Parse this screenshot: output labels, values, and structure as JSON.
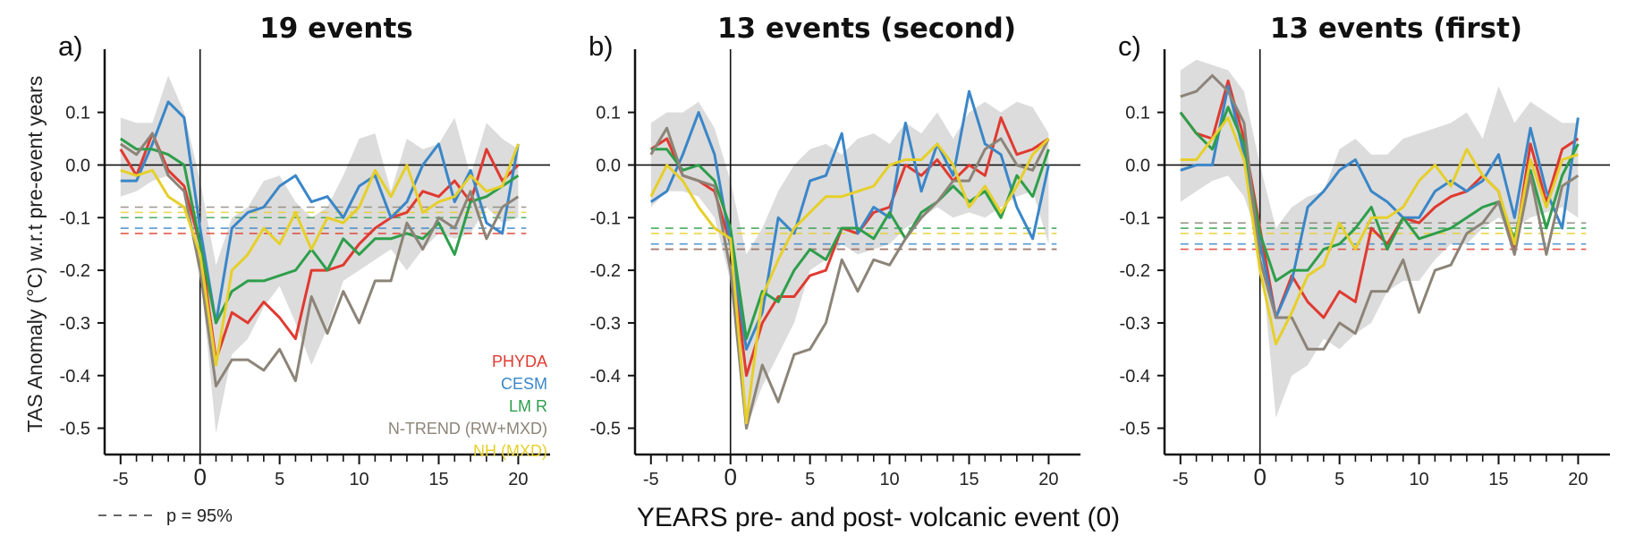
{
  "figure": {
    "ylabel": "TAS Anomaly (°C) w.r.t pre-event years",
    "xlabel": "YEARS pre- and post- volcanic event (0)",
    "significance_note": "p = 95%",
    "legend": [
      {
        "name": "PHYDA",
        "color": "#e03a30"
      },
      {
        "name": "CESM",
        "color": "#3a86c8"
      },
      {
        "name": "LM R",
        "color": "#2e9e4a"
      },
      {
        "name": "N-TREND (RW+MXD)",
        "color": "#8c8478"
      },
      {
        "name": "NH (MXD)",
        "color": "#e6cf2a"
      }
    ]
  },
  "chart_data": [
    {
      "type": "line",
      "panel_label": "a)",
      "title": "19 events",
      "xlim": [
        -6,
        22
      ],
      "ylim": [
        -0.55,
        0.22
      ],
      "xticks": [
        -5,
        0,
        5,
        10,
        15,
        20
      ],
      "yticks": [
        0.1,
        0.0,
        -0.1,
        -0.2,
        -0.3,
        -0.4,
        -0.5
      ],
      "ytick_labels": [
        "0.1",
        "0.0",
        "-0.1",
        "-0.2",
        "-0.3",
        "-0.4",
        "-0.5"
      ],
      "x": [
        -5,
        -4,
        -3,
        -2,
        -1,
        0,
        1,
        2,
        3,
        4,
        5,
        6,
        7,
        8,
        9,
        10,
        11,
        12,
        13,
        14,
        15,
        16,
        17,
        18,
        19,
        20
      ],
      "band_upper": [
        0.09,
        0.08,
        0.08,
        0.17,
        0.1,
        -0.03,
        -0.19,
        -0.1,
        -0.08,
        -0.03,
        -0.02,
        -0.07,
        -0.1,
        -0.08,
        -0.02,
        0.05,
        0.06,
        -0.05,
        0.05,
        0.03,
        0.04,
        0.09,
        -0.02,
        0.08,
        0.05,
        0.03
      ],
      "band_lower": [
        -0.06,
        -0.05,
        -0.03,
        -0.02,
        -0.04,
        -0.2,
        -0.51,
        -0.36,
        -0.33,
        -0.27,
        -0.23,
        -0.3,
        -0.38,
        -0.31,
        -0.22,
        -0.2,
        -0.18,
        -0.16,
        -0.2,
        -0.16,
        -0.13,
        -0.14,
        -0.13,
        -0.08,
        -0.11,
        -0.1
      ],
      "series": [
        {
          "name": "PHYDA",
          "color": "#e03a30",
          "values": [
            0.03,
            -0.02,
            0.06,
            -0.01,
            -0.04,
            -0.15,
            -0.37,
            -0.28,
            -0.3,
            -0.26,
            -0.29,
            -0.33,
            -0.2,
            -0.2,
            -0.19,
            -0.15,
            -0.12,
            -0.1,
            -0.09,
            -0.05,
            -0.06,
            -0.03,
            -0.07,
            0.03,
            -0.03,
            0.0
          ],
          "threshold": -0.13
        },
        {
          "name": "CESM",
          "color": "#3a86c8",
          "values": [
            -0.03,
            -0.03,
            0.04,
            0.12,
            0.09,
            -0.12,
            -0.3,
            -0.12,
            -0.09,
            -0.08,
            -0.04,
            -0.02,
            -0.07,
            -0.06,
            -0.1,
            -0.04,
            -0.02,
            -0.1,
            -0.07,
            0.0,
            0.04,
            -0.07,
            -0.01,
            -0.11,
            -0.13,
            0.04
          ],
          "threshold": -0.12
        },
        {
          "name": "LM R",
          "color": "#2e9e4a",
          "values": [
            0.05,
            0.03,
            0.03,
            0.02,
            0.0,
            -0.15,
            -0.3,
            -0.24,
            -0.22,
            -0.22,
            -0.21,
            -0.2,
            -0.16,
            -0.2,
            -0.14,
            -0.17,
            -0.14,
            -0.14,
            -0.13,
            -0.14,
            -0.11,
            -0.17,
            -0.07,
            -0.06,
            -0.04,
            -0.02
          ],
          "threshold": -0.1
        },
        {
          "name": "N-TREND (RW+MXD)",
          "color": "#8c8478",
          "values": [
            0.04,
            0.02,
            0.06,
            -0.02,
            -0.05,
            -0.2,
            -0.42,
            -0.37,
            -0.37,
            -0.39,
            -0.35,
            -0.41,
            -0.25,
            -0.32,
            -0.24,
            -0.3,
            -0.22,
            -0.22,
            -0.11,
            -0.16,
            -0.1,
            -0.12,
            -0.05,
            -0.14,
            -0.08,
            -0.06
          ],
          "threshold": -0.08
        },
        {
          "name": "NH (MXD)",
          "color": "#e6cf2a",
          "values": [
            -0.01,
            -0.02,
            -0.01,
            -0.06,
            -0.08,
            -0.17,
            -0.38,
            -0.2,
            -0.17,
            -0.12,
            -0.15,
            -0.09,
            -0.16,
            -0.1,
            -0.11,
            -0.08,
            -0.01,
            -0.06,
            0.0,
            -0.09,
            -0.07,
            -0.06,
            -0.02,
            -0.05,
            -0.04,
            0.04
          ],
          "threshold": -0.09
        }
      ]
    },
    {
      "type": "line",
      "panel_label": "b)",
      "title": "13 events (second)",
      "xlim": [
        -6,
        22
      ],
      "ylim": [
        -0.55,
        0.22
      ],
      "xticks": [
        -5,
        0,
        5,
        10,
        15,
        20
      ],
      "yticks": [
        0.1,
        0.0,
        -0.1,
        -0.2,
        -0.3,
        -0.4,
        -0.5
      ],
      "ytick_labels": [
        "0.1",
        "0.0",
        "-0.1",
        "-0.2",
        "-0.3",
        "-0.4",
        "-0.5"
      ],
      "x": [
        -5,
        -4,
        -3,
        -2,
        -1,
        0,
        1,
        2,
        3,
        4,
        5,
        6,
        7,
        8,
        9,
        10,
        11,
        12,
        13,
        14,
        15,
        16,
        17,
        18,
        19,
        20
      ],
      "band_upper": [
        0.08,
        0.1,
        0.1,
        0.12,
        0.07,
        -0.03,
        -0.17,
        -0.12,
        -0.05,
        0.0,
        0.03,
        0.04,
        0.02,
        0.05,
        0.06,
        0.04,
        0.08,
        0.06,
        0.1,
        0.05,
        0.1,
        0.12,
        0.1,
        0.12,
        0.11,
        0.06
      ],
      "band_lower": [
        -0.08,
        -0.05,
        -0.05,
        -0.06,
        -0.1,
        -0.22,
        -0.5,
        -0.42,
        -0.36,
        -0.3,
        -0.2,
        -0.18,
        -0.15,
        -0.17,
        -0.16,
        -0.15,
        -0.12,
        -0.1,
        -0.08,
        -0.1,
        -0.09,
        -0.1,
        -0.08,
        -0.06,
        -0.05,
        -0.15
      ],
      "series": [
        {
          "name": "PHYDA",
          "color": "#e03a30",
          "values": [
            0.03,
            0.05,
            -0.02,
            -0.03,
            -0.05,
            -0.15,
            -0.4,
            -0.3,
            -0.25,
            -0.25,
            -0.21,
            -0.2,
            -0.12,
            -0.13,
            -0.09,
            -0.08,
            0.0,
            -0.02,
            0.01,
            -0.03,
            0.0,
            -0.02,
            0.09,
            0.02,
            0.03,
            0.05
          ],
          "threshold": -0.16
        },
        {
          "name": "CESM",
          "color": "#3a86c8",
          "values": [
            -0.07,
            -0.05,
            0.02,
            0.1,
            0.02,
            -0.15,
            -0.35,
            -0.28,
            -0.1,
            -0.13,
            -0.03,
            -0.02,
            0.06,
            -0.13,
            -0.08,
            -0.1,
            0.08,
            -0.05,
            0.04,
            -0.02,
            0.14,
            0.04,
            0.02,
            -0.08,
            -0.14,
            0.0
          ],
          "threshold": -0.15
        },
        {
          "name": "LM R",
          "color": "#2e9e4a",
          "values": [
            0.03,
            0.03,
            -0.01,
            0.0,
            -0.03,
            -0.12,
            -0.33,
            -0.24,
            -0.26,
            -0.2,
            -0.16,
            -0.18,
            -0.12,
            -0.12,
            -0.14,
            -0.09,
            -0.14,
            -0.09,
            -0.07,
            -0.04,
            -0.07,
            -0.05,
            -0.1,
            -0.02,
            -0.06,
            0.03
          ],
          "threshold": -0.12
        },
        {
          "name": "N-TREND (RW+MXD)",
          "color": "#8c8478",
          "values": [
            0.02,
            0.07,
            -0.02,
            -0.03,
            -0.04,
            -0.2,
            -0.5,
            -0.38,
            -0.45,
            -0.36,
            -0.35,
            -0.3,
            -0.18,
            -0.24,
            -0.18,
            -0.19,
            -0.14,
            -0.1,
            -0.07,
            -0.03,
            -0.03,
            0.03,
            0.05,
            0.0,
            -0.01,
            0.05
          ],
          "threshold": -0.16
        },
        {
          "name": "NH (MXD)",
          "color": "#e6cf2a",
          "values": [
            -0.06,
            0.0,
            -0.03,
            -0.08,
            -0.12,
            -0.14,
            -0.49,
            -0.25,
            -0.18,
            -0.12,
            -0.09,
            -0.06,
            -0.06,
            -0.05,
            -0.04,
            0.0,
            0.01,
            0.01,
            0.04,
            0.0,
            -0.08,
            -0.04,
            -0.09,
            -0.04,
            0.02,
            0.05
          ],
          "threshold": -0.13
        }
      ]
    },
    {
      "type": "line",
      "panel_label": "c)",
      "title": "13 events (first)",
      "xlim": [
        -6,
        22
      ],
      "ylim": [
        -0.55,
        0.22
      ],
      "xticks": [
        -5,
        0,
        5,
        10,
        15,
        20
      ],
      "yticks": [
        0.1,
        0.0,
        -0.1,
        -0.2,
        -0.3,
        -0.4,
        -0.5
      ],
      "ytick_labels": [
        "0.1",
        "0.0",
        "-0.1",
        "-0.2",
        "-0.3",
        "-0.4",
        "-0.5"
      ],
      "x": [
        -5,
        -4,
        -3,
        -2,
        -1,
        0,
        1,
        2,
        3,
        4,
        5,
        6,
        7,
        8,
        9,
        10,
        11,
        12,
        13,
        14,
        15,
        16,
        17,
        18,
        19,
        20
      ],
      "band_upper": [
        0.18,
        0.2,
        0.19,
        0.18,
        0.14,
        0.0,
        -0.12,
        -0.08,
        -0.06,
        -0.05,
        0.03,
        0.05,
        0.02,
        0.02,
        0.05,
        0.06,
        0.07,
        0.08,
        0.1,
        0.05,
        0.15,
        0.08,
        0.12,
        0.1,
        0.08,
        0.08
      ],
      "band_lower": [
        -0.07,
        -0.05,
        -0.03,
        -0.02,
        -0.06,
        -0.15,
        -0.48,
        -0.4,
        -0.38,
        -0.33,
        -0.35,
        -0.32,
        -0.3,
        -0.24,
        -0.22,
        -0.22,
        -0.18,
        -0.15,
        -0.15,
        -0.12,
        -0.1,
        -0.12,
        -0.1,
        -0.09,
        -0.08,
        -0.1
      ],
      "series": [
        {
          "name": "PHYDA",
          "color": "#e03a30",
          "values": [
            0.1,
            0.06,
            0.05,
            0.16,
            0.05,
            -0.12,
            -0.29,
            -0.21,
            -0.26,
            -0.29,
            -0.24,
            -0.26,
            -0.12,
            -0.15,
            -0.1,
            -0.11,
            -0.08,
            -0.06,
            -0.05,
            -0.02,
            -0.05,
            -0.16,
            0.04,
            -0.07,
            0.03,
            0.05
          ],
          "threshold": -0.16
        },
        {
          "name": "CESM",
          "color": "#3a86c8",
          "values": [
            -0.01,
            0.0,
            0.0,
            0.15,
            0.02,
            -0.15,
            -0.29,
            -0.22,
            -0.08,
            -0.05,
            -0.01,
            0.01,
            -0.05,
            -0.07,
            -0.1,
            -0.1,
            -0.05,
            -0.03,
            -0.05,
            -0.03,
            0.02,
            -0.1,
            0.07,
            -0.05,
            -0.12,
            0.09
          ],
          "threshold": -0.15
        },
        {
          "name": "LM R",
          "color": "#2e9e4a",
          "values": [
            0.1,
            0.06,
            0.03,
            0.11,
            0.04,
            -0.13,
            -0.22,
            -0.2,
            -0.2,
            -0.16,
            -0.15,
            -0.12,
            -0.08,
            -0.16,
            -0.1,
            -0.14,
            -0.13,
            -0.12,
            -0.1,
            -0.08,
            -0.07,
            -0.14,
            -0.01,
            -0.12,
            -0.02,
            0.04
          ],
          "threshold": -0.12
        },
        {
          "name": "N-TREND (RW+MXD)",
          "color": "#8c8478",
          "values": [
            0.13,
            0.14,
            0.17,
            0.14,
            0.08,
            -0.18,
            -0.29,
            -0.29,
            -0.35,
            -0.35,
            -0.3,
            -0.32,
            -0.24,
            -0.24,
            -0.18,
            -0.28,
            -0.2,
            -0.19,
            -0.13,
            -0.11,
            -0.07,
            -0.17,
            -0.02,
            -0.17,
            -0.04,
            -0.02
          ],
          "threshold": -0.11
        },
        {
          "name": "NH (MXD)",
          "color": "#e6cf2a",
          "values": [
            0.01,
            0.01,
            0.05,
            0.09,
            0.01,
            -0.2,
            -0.34,
            -0.28,
            -0.21,
            -0.19,
            -0.11,
            -0.16,
            -0.1,
            -0.1,
            -0.08,
            -0.03,
            0.0,
            -0.04,
            0.03,
            -0.02,
            -0.05,
            -0.15,
            0.01,
            -0.08,
            0.01,
            0.02
          ],
          "threshold": -0.13
        }
      ]
    }
  ]
}
